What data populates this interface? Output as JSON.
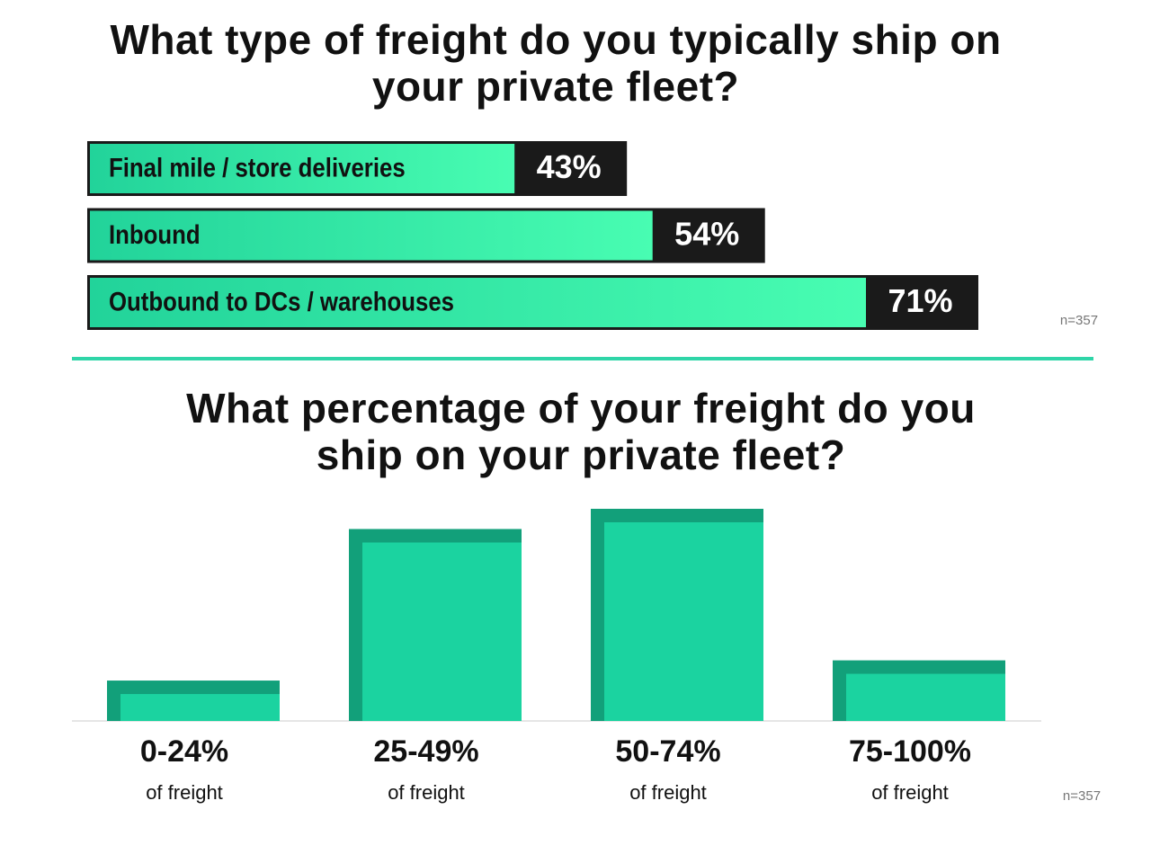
{
  "chart_data": [
    {
      "type": "barh",
      "title": "What type of freight do you typically ship on your private fleet?",
      "categories": [
        "Final mile / store deliveries",
        "Inbound",
        "Outbound to DCs / warehouses"
      ],
      "values": [
        43,
        54,
        71
      ],
      "value_labels": [
        "43%",
        "54%",
        "71%"
      ],
      "color": "#35e8a3",
      "label_box_color": "#1a1a1a",
      "note": "n=357"
    },
    {
      "type": "bar",
      "title": "What percentage of your freight do you ship on your private fleet?",
      "categories": [
        "0-24%",
        "25-49%",
        "50-74%",
        "75-100%"
      ],
      "category_note": "of freight",
      "values": [
        8,
        38,
        42,
        12
      ],
      "color": "#1bd3a0",
      "edge_color": "#12a07a",
      "note": "n=357"
    }
  ]
}
